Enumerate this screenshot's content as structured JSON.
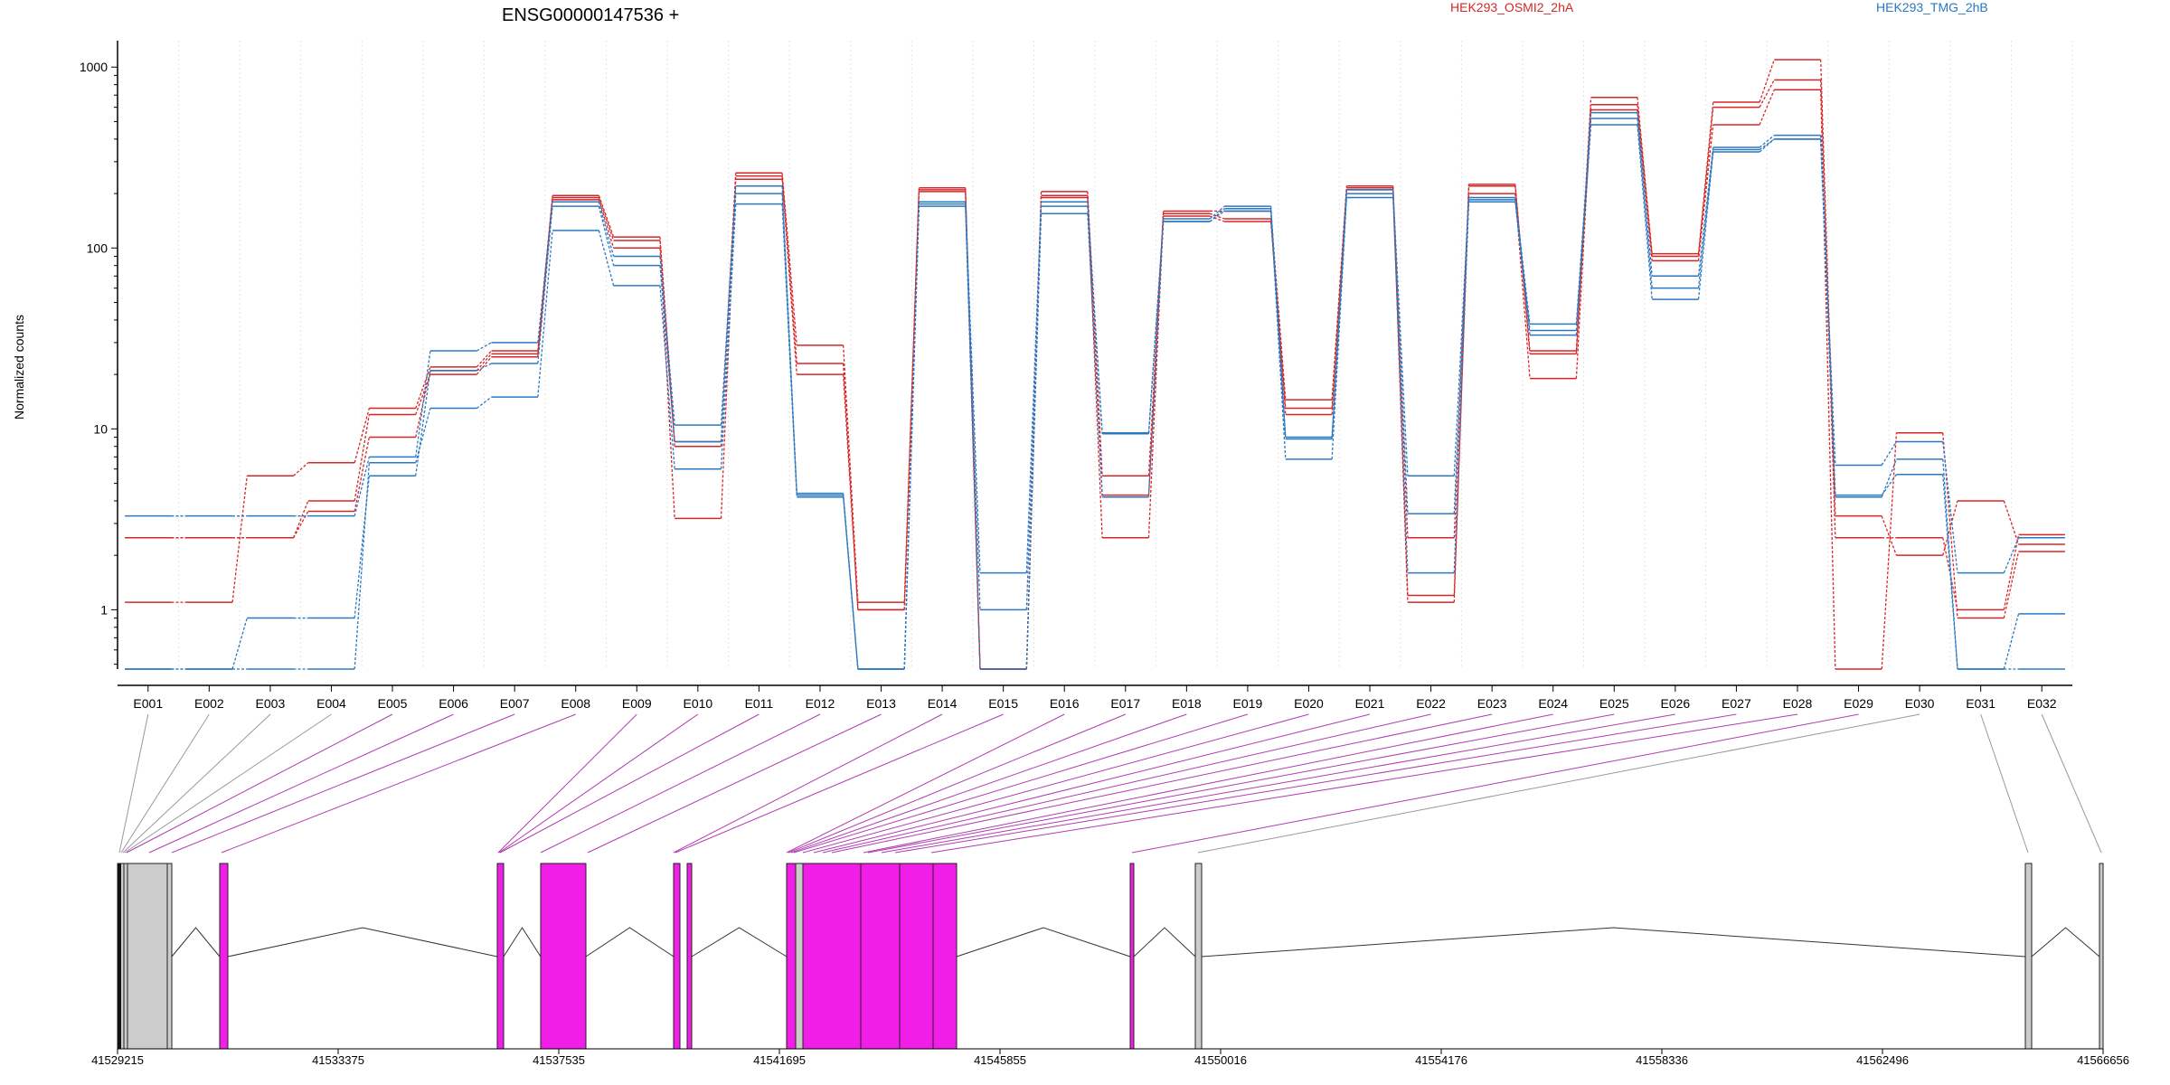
{
  "chart_data": {
    "type": "line",
    "title": "ENSG00000147536 +",
    "ylabel": "Normalized counts",
    "yscale": "log",
    "ylim": [
      0.47,
      1400
    ],
    "yticks": [
      1,
      10,
      100,
      1000
    ],
    "ytick_labels": [
      "1",
      "10",
      "100",
      "1000"
    ],
    "legend": {
      "placement": "top",
      "entries": [
        "HEK293_OSMI2_2hA",
        "HEK293_TMG_2hB"
      ]
    },
    "colors": {
      "HEK293_OSMI2_2hA": "#d62728",
      "HEK293_TMG_2hB": "#2a78c0",
      "exon_highlight": "#f01ee6",
      "exon_plain": "#cccccc",
      "link_plain": "#999999",
      "link_highlight": "#b03cb0"
    },
    "categories": [
      "E001",
      "E002",
      "E003",
      "E004",
      "E005",
      "E006",
      "E007",
      "E008",
      "E009",
      "E010",
      "E011",
      "E012",
      "E013",
      "E014",
      "E015",
      "E016",
      "E017",
      "E018",
      "E019",
      "E020",
      "E021",
      "E022",
      "E023",
      "E024",
      "E025",
      "E026",
      "E027",
      "E028",
      "E029",
      "E030",
      "E031",
      "E032"
    ],
    "series": [
      {
        "group": "HEK293_OSMI2_2hA",
        "values": [
          1.1,
          1.1,
          5.5,
          6.5,
          13,
          22,
          27,
          195,
          115,
          8.5,
          260,
          29,
          1.1,
          215,
          0.47,
          205,
          5.5,
          160,
          160,
          14.5,
          220,
          1.1,
          225,
          27,
          680,
          93,
          640,
          1100,
          3.3,
          2.0,
          4.0,
          2.3
        ]
      },
      {
        "group": "HEK293_OSMI2_2hA",
        "values": [
          2.5,
          2.5,
          2.5,
          3.5,
          9,
          21,
          26,
          190,
          110,
          8.0,
          250,
          23,
          1.0,
          210,
          0.47,
          195,
          4.3,
          155,
          145,
          13,
          215,
          2.5,
          220,
          26,
          620,
          90,
          600,
          850,
          2.5,
          2.5,
          1.0,
          2.6
        ]
      },
      {
        "group": "HEK293_OSMI2_2hA",
        "values": [
          2.5,
          2.5,
          2.5,
          4.0,
          12,
          20,
          25,
          185,
          100,
          3.2,
          240,
          20,
          1.0,
          205,
          0.47,
          190,
          2.5,
          150,
          140,
          12,
          210,
          1.2,
          200,
          19,
          580,
          85,
          480,
          750,
          0.47,
          9.5,
          0.9,
          2.1
        ]
      },
      {
        "group": "HEK293_TMG_2hB",
        "values": [
          3.3,
          3.3,
          3.3,
          3.3,
          7,
          27,
          30,
          180,
          90,
          10.5,
          220,
          4.4,
          0.47,
          180,
          1.6,
          180,
          9.5,
          145,
          170,
          9,
          210,
          5.5,
          190,
          38,
          560,
          70,
          360,
          420,
          6.3,
          8.5,
          1.6,
          2.5
        ]
      },
      {
        "group": "HEK293_TMG_2hB",
        "values": [
          0.47,
          0.47,
          0.9,
          0.9,
          5.5,
          21,
          23,
          170,
          80,
          8.5,
          200,
          4.3,
          0.47,
          175,
          1.0,
          170,
          9.4,
          140,
          165,
          8.8,
          200,
          3.4,
          185,
          35,
          520,
          60,
          350,
          400,
          4.3,
          5.6,
          0.47,
          0.95
        ]
      },
      {
        "group": "HEK293_TMG_2hB",
        "values": [
          0.47,
          0.47,
          0.47,
          0.47,
          6.5,
          13,
          15,
          125,
          62,
          6.0,
          175,
          4.2,
          0.47,
          170,
          0.47,
          155,
          4.2,
          140,
          160,
          6.8,
          190,
          1.6,
          180,
          33,
          480,
          52,
          340,
          400,
          4.2,
          6.8,
          0.47,
          0.47
        ]
      }
    ],
    "gene_track": {
      "axis_ticks": [
        "41529215",
        "41533375",
        "41537535",
        "41541695",
        "41545855",
        "41550016",
        "41554176",
        "41558336",
        "41562496",
        "41566656"
      ],
      "exon_colors": [
        "plain",
        "plain",
        "plain",
        "plain",
        "highlight",
        "highlight",
        "highlight",
        "highlight",
        "highlight",
        "highlight",
        "highlight",
        "highlight",
        "highlight",
        "highlight",
        "highlight",
        "highlight",
        "highlight",
        "highlight",
        "highlight",
        "highlight",
        "highlight",
        "highlight",
        "highlight",
        "highlight",
        "highlight",
        "highlight",
        "highlight",
        "highlight",
        "highlight",
        "plain",
        "plain",
        "plain"
      ]
    }
  }
}
